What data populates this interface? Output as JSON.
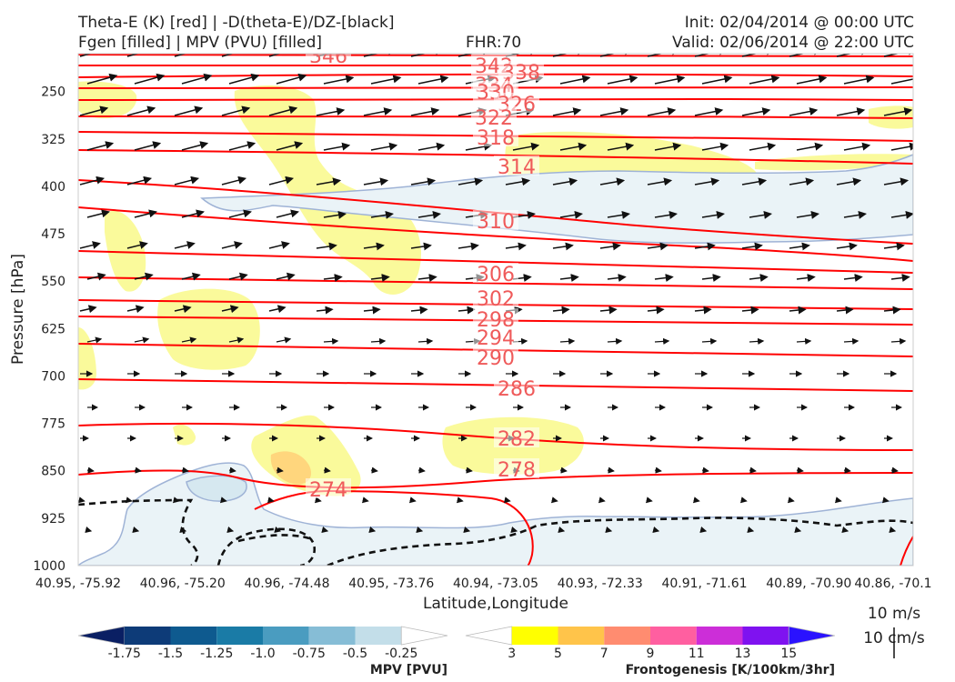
{
  "header": {
    "title_line1": "Theta-E (K) [red] | -D(theta-E)/DZ-[black]",
    "title_line2": "Fgen [filled] | MPV (PVU) [filled]",
    "fhr": "FHR:70",
    "init": "Init: 02/04/2014 @ 00:00 UTC",
    "valid": "Valid: 02/06/2014 @ 22:00 UTC"
  },
  "chart_data": {
    "type": "cross-section",
    "xlabel": "Latitude,Longitude",
    "ylabel": "Pressure [hPa]",
    "x_ticks": [
      "40.95, -75.92",
      "40.96, -75.20",
      "40.96, -74.48",
      "40.95, -73.76",
      "40.94, -73.05",
      "40.93, -72.33",
      "40.91, -71.61",
      "40.89, -70.90",
      "40.86, -70.1"
    ],
    "y_ticks": [
      250,
      325,
      400,
      475,
      550,
      625,
      700,
      775,
      850,
      925,
      1000
    ],
    "ylim": [
      1000,
      190
    ],
    "theta_e_contours": {
      "color": "#ff0000",
      "levels": [
        346,
        342,
        338,
        334,
        330,
        326,
        322,
        318,
        314,
        310,
        306,
        302,
        298,
        294,
        290,
        286,
        282,
        278,
        274
      ],
      "labels": [
        "346",
        "342",
        "338",
        "334",
        "330",
        "326",
        "322",
        "318",
        "314",
        "310",
        "306",
        "302",
        "298",
        "294",
        "290",
        "286",
        "282",
        "278",
        "274"
      ]
    },
    "mpv_colorbar": {
      "title": "MPV [PVU]",
      "ticks": [
        "-1.75",
        "-1.5",
        "-1.25",
        "-1.0",
        "-0.75",
        "-0.5",
        "-0.25"
      ],
      "colors": [
        "#0a1f63",
        "#0d3b78",
        "#0e5a8f",
        "#1a7ba6",
        "#4a9cc0",
        "#86bdd6",
        "#c3dee9",
        "#ffffff"
      ]
    },
    "fgen_colorbar": {
      "title": "Frontogenesis [K/100km/3hr]",
      "ticks": [
        "3",
        "5",
        "7",
        "9",
        "11",
        "13",
        "15"
      ],
      "colors": [
        "#ffffff",
        "#ffff00",
        "#ffc44a",
        "#ff8c70",
        "#ff5fa0",
        "#cc2ed8",
        "#7f12f0",
        "#2a12ff"
      ]
    },
    "vector_key": {
      "horizontal": "10 m/s",
      "vertical": "10 cm/s"
    }
  }
}
